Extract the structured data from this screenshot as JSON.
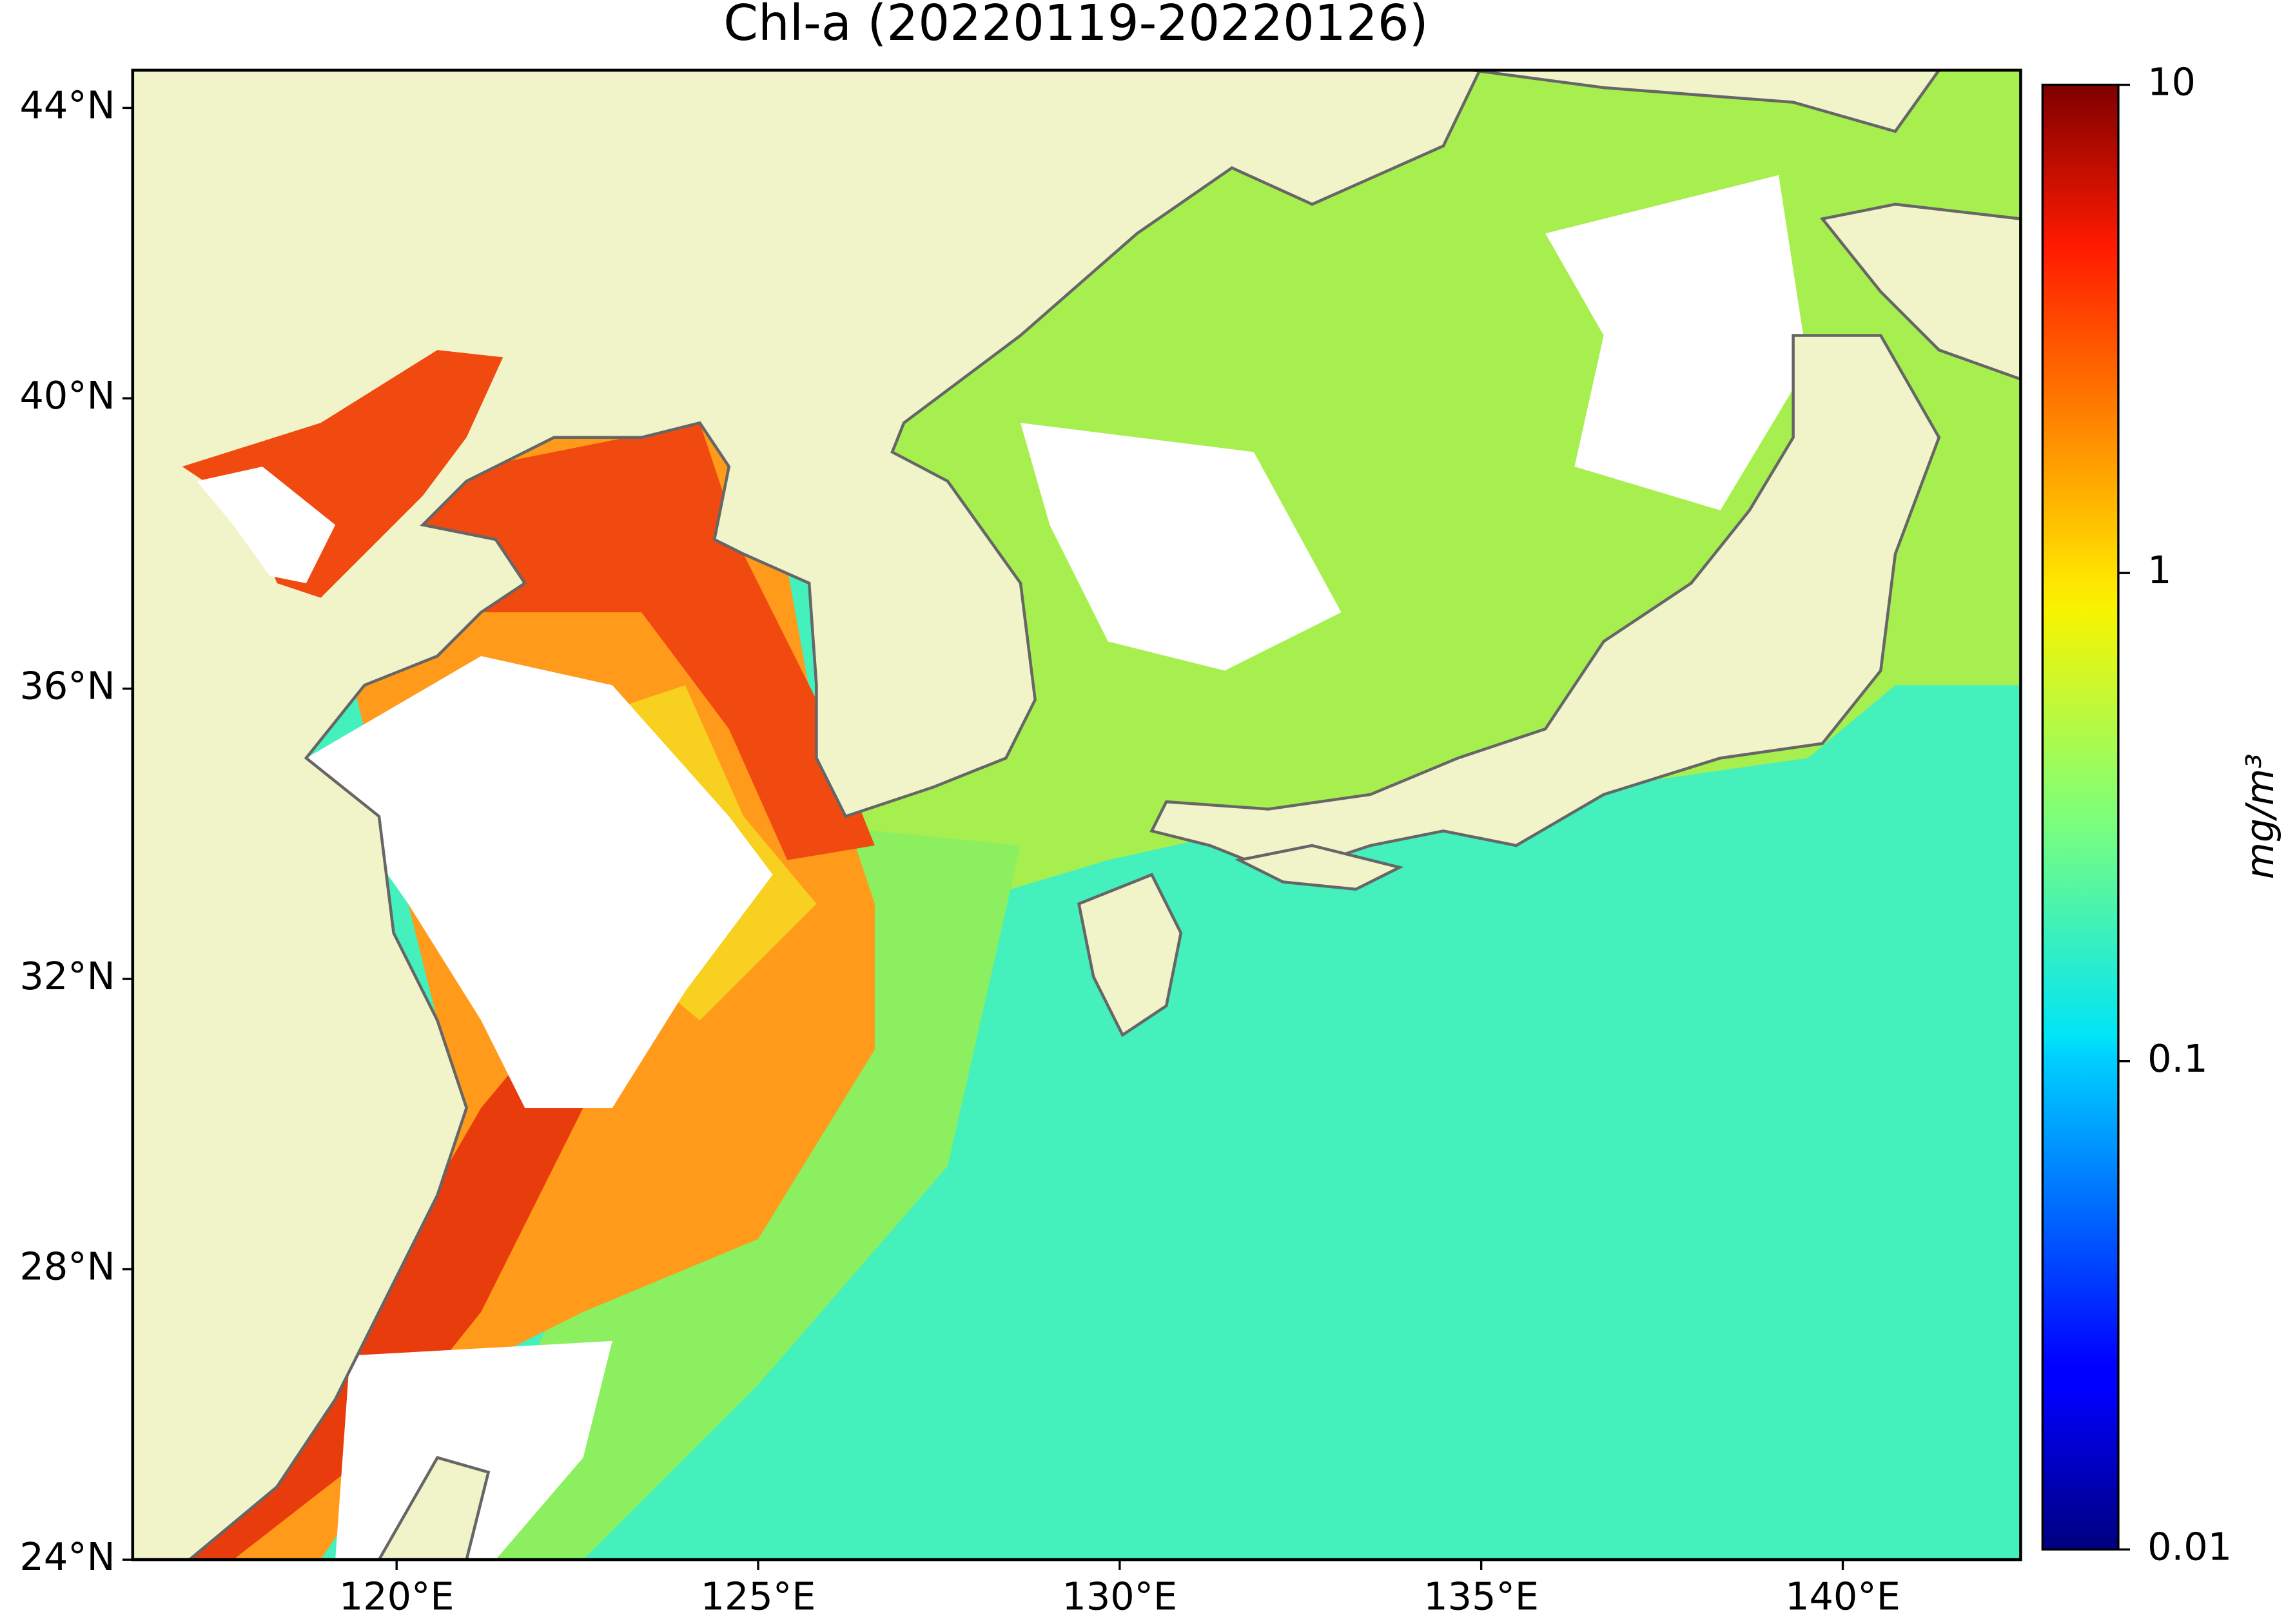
{
  "chart_data": {
    "type": "map",
    "title": "Chl-a (20220119-20220126)",
    "xlim": [
      116.35,
      142.46
    ],
    "ylim": [
      24,
      44.52
    ],
    "xticks": [
      {
        "value": 120,
        "label": "120°E"
      },
      {
        "value": 125,
        "label": "125°E"
      },
      {
        "value": 130,
        "label": "130°E"
      },
      {
        "value": 135,
        "label": "135°E"
      },
      {
        "value": 140,
        "label": "140°E"
      }
    ],
    "yticks": [
      {
        "value": 24,
        "label": "24°N"
      },
      {
        "value": 28,
        "label": "28°N"
      },
      {
        "value": 32,
        "label": "32°N"
      },
      {
        "value": 36,
        "label": "36°N"
      },
      {
        "value": 40,
        "label": "40°N"
      },
      {
        "value": 44,
        "label": "44°N"
      }
    ],
    "colorbar": {
      "label": "mg/m³",
      "scale": "log",
      "lim": [
        0.01,
        10
      ],
      "ticks": [
        0.01,
        0.1,
        1,
        10
      ],
      "colormap": "jet"
    }
  }
}
